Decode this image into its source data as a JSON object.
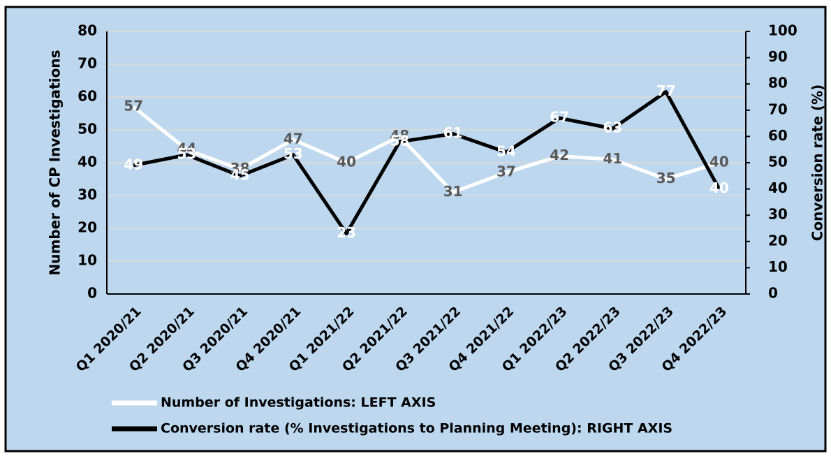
{
  "chart_data": {
    "type": "line",
    "categories": [
      "Q1 2020/21",
      "Q2 2020/21",
      "Q3 2020/21",
      "Q4 2020/21",
      "Q1 2021/22",
      "Q2 2021/22",
      "Q3 2021/22",
      "Q4 2021/22",
      "Q1 2022/23",
      "Q2 2022/23",
      "Q3 2022/23",
      "Q4 2022/23"
    ],
    "series": [
      {
        "name": "Number of Investigations: LEFT AXIS",
        "color": "#ffffff",
        "label_color": "#595959",
        "values": [
          57,
          44,
          38,
          47,
          40,
          48,
          31,
          37,
          42,
          41,
          35,
          40
        ]
      },
      {
        "name": "Conversion rate (% Investigations to Planning Meeting): RIGHT AXIS",
        "color": "#000000",
        "label_color": "#ffffff",
        "axis": "y2",
        "values": [
          49,
          53,
          45,
          53,
          23,
          58,
          61,
          54,
          67,
          63,
          77,
          40
        ]
      }
    ],
    "ylabel": "Number of CP Investigations",
    "y2label": "Conversion rate (%)",
    "ylim": [
      0,
      80
    ],
    "yticks": [
      0,
      10,
      20,
      30,
      40,
      50,
      60,
      70,
      80
    ],
    "y2lim": [
      0,
      100
    ],
    "y2ticks": [
      0,
      10,
      20,
      30,
      40,
      50,
      60,
      70,
      80,
      90,
      100
    ],
    "grid": true,
    "legend": "bottom-left",
    "background": "#bdd7ee"
  }
}
